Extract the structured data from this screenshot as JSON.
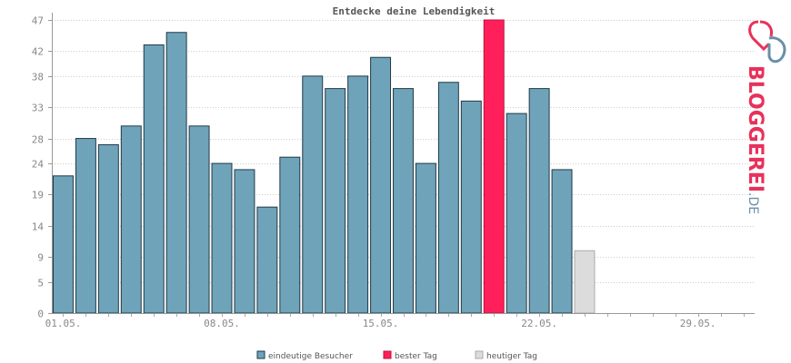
{
  "chart_data": {
    "type": "bar",
    "title": "Entdecke deine Lebendigkeit",
    "xlabel": "",
    "ylabel": "",
    "ylim": [
      0,
      47
    ],
    "yticks": [
      0,
      5,
      9,
      14,
      19,
      24,
      28,
      33,
      38,
      42,
      47
    ],
    "days": 31,
    "x_tick_labels": [
      {
        "day": 1,
        "label": "01.05."
      },
      {
        "day": 8,
        "label": "08.05."
      },
      {
        "day": 15,
        "label": "15.05."
      },
      {
        "day": 22,
        "label": "22.05."
      },
      {
        "day": 29,
        "label": "29.05."
      }
    ],
    "bars": [
      {
        "day": 1,
        "value": 22,
        "kind": "visitors"
      },
      {
        "day": 2,
        "value": 28,
        "kind": "visitors"
      },
      {
        "day": 3,
        "value": 27,
        "kind": "visitors"
      },
      {
        "day": 4,
        "value": 30,
        "kind": "visitors"
      },
      {
        "day": 5,
        "value": 43,
        "kind": "visitors"
      },
      {
        "day": 6,
        "value": 45,
        "kind": "visitors"
      },
      {
        "day": 7,
        "value": 30,
        "kind": "visitors"
      },
      {
        "day": 8,
        "value": 24,
        "kind": "visitors"
      },
      {
        "day": 9,
        "value": 23,
        "kind": "visitors"
      },
      {
        "day": 10,
        "value": 17,
        "kind": "visitors"
      },
      {
        "day": 11,
        "value": 25,
        "kind": "visitors"
      },
      {
        "day": 12,
        "value": 38,
        "kind": "visitors"
      },
      {
        "day": 13,
        "value": 36,
        "kind": "visitors"
      },
      {
        "day": 14,
        "value": 38,
        "kind": "visitors"
      },
      {
        "day": 15,
        "value": 41,
        "kind": "visitors"
      },
      {
        "day": 16,
        "value": 36,
        "kind": "visitors"
      },
      {
        "day": 17,
        "value": 24,
        "kind": "visitors"
      },
      {
        "day": 18,
        "value": 37,
        "kind": "visitors"
      },
      {
        "day": 19,
        "value": 34,
        "kind": "visitors"
      },
      {
        "day": 20,
        "value": 47,
        "kind": "best"
      },
      {
        "day": 21,
        "value": 32,
        "kind": "visitors"
      },
      {
        "day": 22,
        "value": 36,
        "kind": "visitors"
      },
      {
        "day": 23,
        "value": 23,
        "kind": "visitors"
      },
      {
        "day": 24,
        "value": 10,
        "kind": "today"
      }
    ],
    "legend": [
      {
        "kind": "visitors",
        "label": "eindeutige Besucher",
        "color": "#6fa3b9"
      },
      {
        "kind": "best",
        "label": "bester Tag",
        "color": "#ff1f5a"
      },
      {
        "kind": "today",
        "label": "heutiger Tag",
        "color": "#dcdcdc"
      }
    ],
    "legend_position": "bottom-center",
    "grid": true
  },
  "logo": {
    "text_main": "BLOGGEREI",
    "text_suffix": ".DE",
    "main_color": "#e8315a",
    "suffix_color": "#6a8fa8"
  }
}
